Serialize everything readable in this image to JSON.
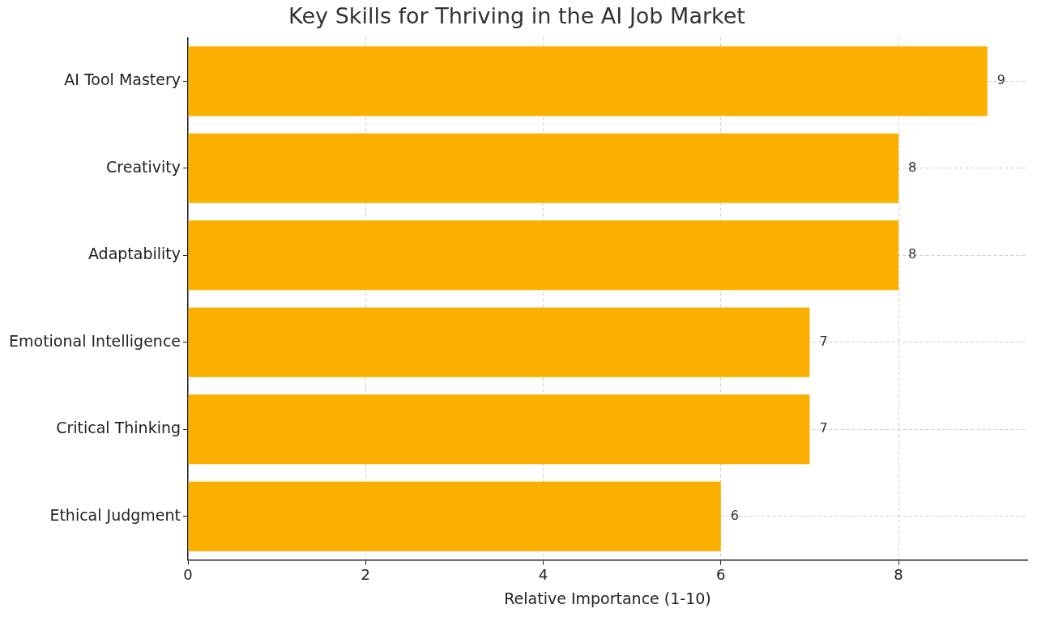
{
  "chart_data": {
    "type": "bar",
    "orientation": "horizontal",
    "title": "Key Skills for Thriving in the AI Job Market",
    "xlabel": "Relative Importance (1-10)",
    "categories": [
      "AI Tool Mastery",
      "Creativity",
      "Adaptability",
      "Emotional Intelligence",
      "Critical Thinking",
      "Ethical Judgment"
    ],
    "values": [
      9,
      8,
      8,
      7,
      7,
      6
    ],
    "color": "#fbb000",
    "xlim": [
      0,
      9.45
    ],
    "xticks": [
      0,
      2,
      4,
      6,
      8
    ],
    "grid": true,
    "data_labels": true,
    "legend": false
  }
}
